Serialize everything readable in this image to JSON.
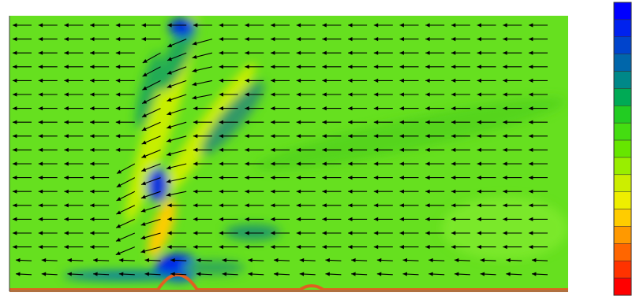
{
  "colorbar": {
    "colors": [
      "#0000ff",
      "#0022ee",
      "#0044cc",
      "#0066aa",
      "#008888",
      "#00aa55",
      "#22cc22",
      "#44dd11",
      "#66e600",
      "#99ee00",
      "#ccee00",
      "#eeee00",
      "#ffcc00",
      "#ff9900",
      "#ff6600",
      "#ff3300",
      "#ff0000"
    ]
  }
}
